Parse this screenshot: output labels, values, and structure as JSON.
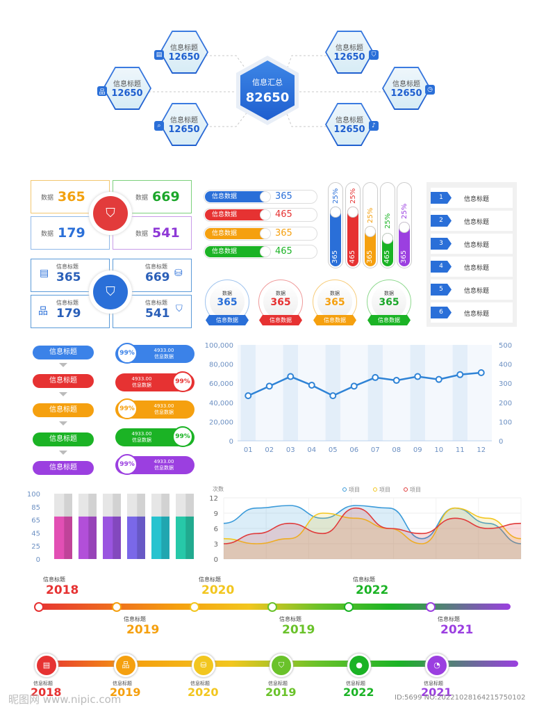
{
  "hub": {
    "center_label": "信息汇总",
    "center_value": "82650",
    "nodes": [
      {
        "label": "信息标题",
        "value": "12650",
        "icon": "document-icon"
      },
      {
        "label": "信息标题",
        "value": "12650",
        "icon": "org-chart-icon"
      },
      {
        "label": "信息标题",
        "value": "12650",
        "icon": "data-search-icon"
      },
      {
        "label": "信息标题",
        "value": "12650",
        "icon": "shield-icon"
      },
      {
        "label": "信息标题",
        "value": "12650",
        "icon": "clock-icon"
      },
      {
        "label": "信息标题",
        "value": "12650",
        "icon": "bell-icon"
      }
    ]
  },
  "stat_grid1": [
    {
      "key": "数据",
      "value": "365",
      "color": "#f2a10f"
    },
    {
      "key": "数据",
      "value": "669",
      "color": "#1ba62a"
    },
    {
      "key": "数据",
      "value": "179",
      "color": "#2a6fd8"
    },
    {
      "key": "数据",
      "value": "541",
      "color": "#8e38d6"
    }
  ],
  "stat_grid2": [
    {
      "key": "信息标题",
      "value": "365"
    },
    {
      "key": "信息标题",
      "value": "669"
    },
    {
      "key": "信息标题",
      "value": "179"
    },
    {
      "key": "信息标题",
      "value": "541"
    }
  ],
  "pills": [
    {
      "label": "信息数据",
      "value": "365",
      "color": "#2a6fd8"
    },
    {
      "label": "信息数据",
      "value": "465",
      "color": "#e63232"
    },
    {
      "label": "信息数据",
      "value": "365",
      "color": "#f5a00f"
    },
    {
      "label": "信息数据",
      "value": "465",
      "color": "#1bb325"
    }
  ],
  "gauges": [
    {
      "value": "365",
      "pct": "25%",
      "color": "#2a6fd8"
    },
    {
      "value": "465",
      "pct": "25%",
      "color": "#e63232"
    },
    {
      "value": "365",
      "pct": "25%",
      "color": "#f5a00f"
    },
    {
      "value": "465",
      "pct": "25%",
      "color": "#1bb325"
    },
    {
      "value": "365",
      "pct": "25%",
      "color": "#9b3fe0"
    }
  ],
  "num_list": [
    {
      "n": "1",
      "t": "信息标题"
    },
    {
      "n": "2",
      "t": "信息标题"
    },
    {
      "n": "3",
      "t": "信息标题"
    },
    {
      "n": "4",
      "t": "信息标题"
    },
    {
      "n": "5",
      "t": "信息标题"
    },
    {
      "n": "6",
      "t": "信息标题"
    }
  ],
  "badges": [
    {
      "label": "数据",
      "value": "365",
      "tag": "信息数据",
      "color": "#2a6fd8"
    },
    {
      "label": "数据",
      "value": "365",
      "tag": "信息数据",
      "color": "#e63232"
    },
    {
      "label": "数据",
      "value": "365",
      "tag": "信息数据",
      "color": "#f5a00f"
    },
    {
      "label": "数据",
      "value": "365",
      "tag": "信息数据",
      "color": "#1bb325"
    }
  ],
  "flow_steps": [
    {
      "label": "信息标题",
      "color": "#3b82e8"
    },
    {
      "label": "信息标题",
      "color": "#e63232"
    },
    {
      "label": "信息标题",
      "color": "#f5a00f"
    },
    {
      "label": "信息标题",
      "color": "#1bb325"
    },
    {
      "label": "信息标题",
      "color": "#9b3fe0"
    }
  ],
  "pct_pills": [
    {
      "pct": "99%",
      "value": "4933.00",
      "label": "信息数据",
      "color": "#3b82e8",
      "side": "left"
    },
    {
      "pct": "99%",
      "value": "4933.00",
      "label": "信息数据",
      "color": "#e63232",
      "side": "right"
    },
    {
      "pct": "99%",
      "value": "4933.00",
      "label": "信息数据",
      "color": "#f5a00f",
      "side": "left"
    },
    {
      "pct": "99%",
      "value": "4933.00",
      "label": "信息数据",
      "color": "#1bb325",
      "side": "right"
    },
    {
      "pct": "99%",
      "value": "4933.00",
      "label": "信息数据",
      "color": "#9b3fe0",
      "side": "left"
    }
  ],
  "chart_data": [
    {
      "type": "line",
      "x": [
        "01",
        "02",
        "03",
        "04",
        "05",
        "06",
        "07",
        "08",
        "09",
        "10",
        "11",
        "12"
      ],
      "series": [
        {
          "values": [
            47000,
            57000,
            67000,
            58000,
            47000,
            57000,
            66000,
            63000,
            67000,
            64000,
            69000,
            71000
          ]
        }
      ],
      "ylim": [
        0,
        100000
      ],
      "yticks": [
        "100,000",
        "80,000",
        "60,000",
        "40,000",
        "20,000",
        "0"
      ],
      "y2ticks": [
        "500",
        "400",
        "300",
        "200",
        "100",
        "0"
      ],
      "grid": true
    },
    {
      "type": "bar",
      "categories": [
        "",
        "",
        "",
        "",
        "",
        ""
      ],
      "values": [
        65,
        65,
        65,
        65,
        65,
        65
      ],
      "ylim": [
        0,
        100
      ],
      "yticks": [
        "100",
        "85",
        "65",
        "45",
        "25",
        "0"
      ],
      "colors": [
        "#e24fb4",
        "#b24fd9",
        "#9a55e0",
        "#7a68e8",
        "#27c3cf",
        "#27c8a8"
      ]
    },
    {
      "type": "area",
      "ylabel": "次数",
      "ylim": [
        0,
        12
      ],
      "yticks": [
        "12",
        "9",
        "6",
        "3",
        "0"
      ],
      "legend": [
        "项目",
        "项目",
        "项目"
      ],
      "legend_position": "top-center",
      "series": [
        {
          "name": "项目",
          "color": "#3a9ad9",
          "values": [
            7,
            10,
            10.5,
            8,
            10.5,
            10,
            4,
            10,
            7,
            3
          ]
        },
        {
          "name": "项目",
          "color": "#f2c61f",
          "values": [
            4,
            3,
            4,
            9,
            8,
            6,
            3,
            10,
            8,
            4
          ]
        },
        {
          "name": "项目",
          "color": "#e03a3a",
          "values": [
            3,
            5,
            7,
            5,
            10,
            6,
            5,
            8,
            6,
            7
          ]
        }
      ]
    }
  ],
  "timeline1": [
    {
      "label": "信息标题",
      "year": "2018",
      "color": "#e63232",
      "pos": "top"
    },
    {
      "label": "信息标题",
      "year": "2019",
      "color": "#f5a00f",
      "pos": "bottom"
    },
    {
      "label": "信息标题",
      "year": "2020",
      "color": "#f2c61f",
      "pos": "top"
    },
    {
      "label": "信息标题",
      "year": "2019",
      "color": "#6ac22a",
      "pos": "bottom"
    },
    {
      "label": "信息标题",
      "year": "2022",
      "color": "#1bb325",
      "pos": "top"
    },
    {
      "label": "信息标题",
      "year": "2021",
      "color": "#9b3fe0",
      "pos": "bottom"
    }
  ],
  "timeline2": [
    {
      "label": "信息标题",
      "year": "2018",
      "color": "#e63232",
      "icon": "document-icon"
    },
    {
      "label": "信息标题",
      "year": "2019",
      "color": "#f5a00f",
      "icon": "org-chart-icon"
    },
    {
      "label": "信息标题",
      "year": "2020",
      "color": "#f2c61f",
      "icon": "data-icon"
    },
    {
      "label": "信息标题",
      "year": "2019",
      "color": "#6ac22a",
      "icon": "shield-icon"
    },
    {
      "label": "信息标题",
      "year": "2022",
      "color": "#1bb325",
      "icon": "user-icon"
    },
    {
      "label": "信息标题",
      "year": "2021",
      "color": "#9b3fe0",
      "icon": "pie-icon"
    }
  ],
  "watermark": {
    "left": "昵图网 www.nipic.com",
    "right": "ID:5699 NO:20221028164215750102"
  }
}
